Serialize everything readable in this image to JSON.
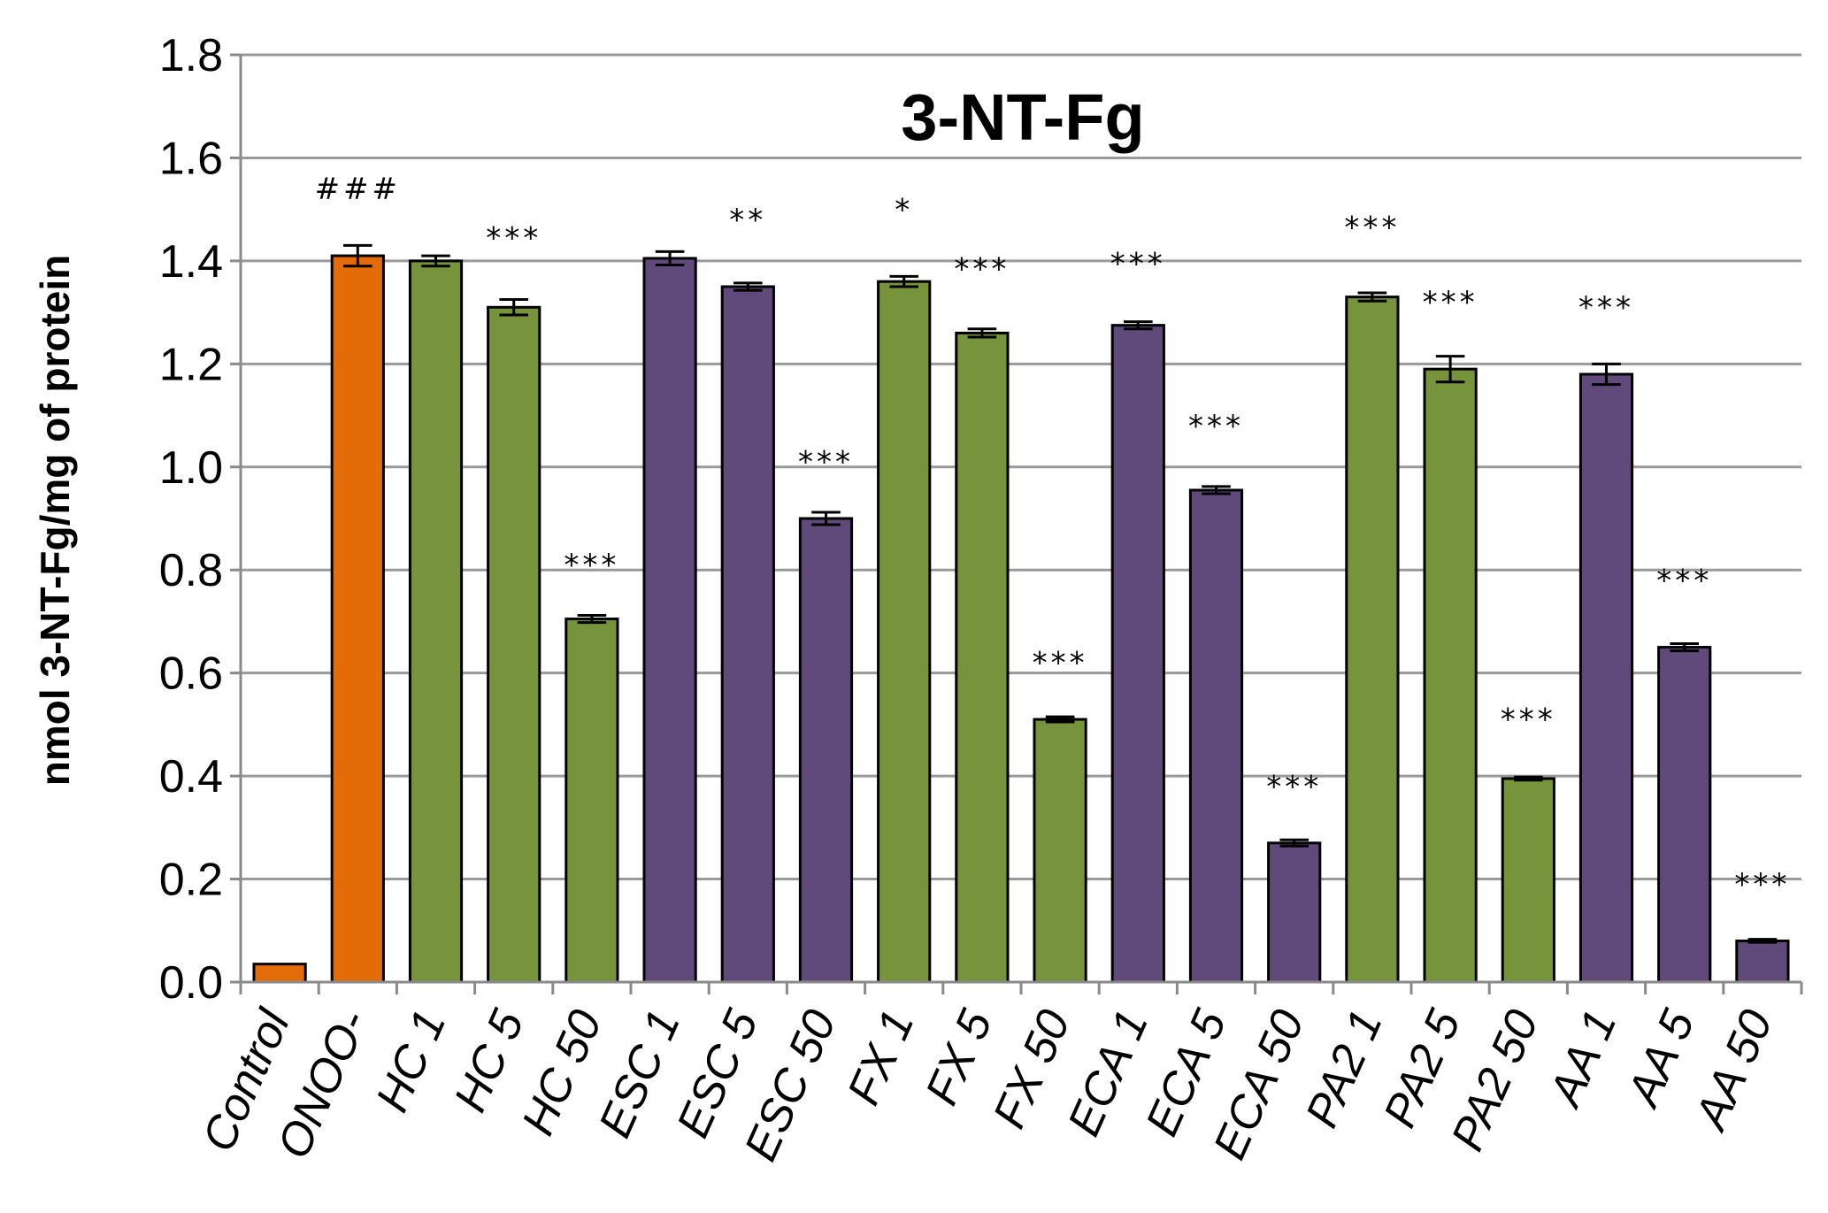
{
  "chart_data": {
    "type": "bar",
    "title": "3-NT-Fg",
    "ylabel": "nmol 3-NT-Fg/mg of protein",
    "xlabel": "",
    "ylim": [
      0,
      1.8
    ],
    "yticks": [
      "0.0",
      "0.2",
      "0.4",
      "0.6",
      "0.8",
      "1.0",
      "1.2",
      "1.4",
      "1.6",
      "1.8"
    ],
    "grid": true,
    "legend": "none",
    "colors": {
      "orange": "#E36C09",
      "green": "#77933C",
      "purple": "#604A7B"
    },
    "categories": [
      "Control",
      "ONOO-",
      "HC 1",
      "HC 5",
      "HC 50",
      "ESC 1",
      "ESC 5",
      "ESC 50",
      "FX 1",
      "FX 5",
      "FX 50",
      "ECA 1",
      "ECA 5",
      "ECA 50",
      "PA2 1",
      "PA2 5",
      "PA2 50",
      "AA 1",
      "AA 5",
      "AA 50"
    ],
    "values": [
      0.035,
      1.41,
      1.4,
      1.31,
      0.705,
      1.405,
      1.35,
      0.9,
      1.36,
      1.26,
      0.51,
      1.275,
      0.955,
      0.27,
      1.33,
      1.19,
      0.395,
      1.18,
      0.65,
      0.08
    ],
    "errors": [
      0.0,
      0.02,
      0.01,
      0.015,
      0.007,
      0.013,
      0.007,
      0.012,
      0.01,
      0.008,
      0.005,
      0.007,
      0.007,
      0.006,
      0.008,
      0.025,
      0.003,
      0.02,
      0.007,
      0.003
    ],
    "bar_colors": [
      "orange",
      "orange",
      "green",
      "green",
      "green",
      "purple",
      "purple",
      "purple",
      "green",
      "green",
      "green",
      "purple",
      "purple",
      "purple",
      "green",
      "green",
      "green",
      "purple",
      "purple",
      "purple"
    ],
    "annotations": [
      "",
      "###",
      "",
      "***",
      "***",
      "",
      "**",
      "***",
      "*",
      "***",
      "***",
      "***",
      "***",
      "***",
      "***",
      "***",
      "***",
      "***",
      "***",
      "***"
    ],
    "annotation_y": [
      null,
      1.52,
      null,
      1.425,
      0.79,
      null,
      1.46,
      0.99,
      1.48,
      1.365,
      0.6,
      1.375,
      1.06,
      0.36,
      1.445,
      1.3,
      0.49,
      1.29,
      0.76,
      0.17
    ]
  }
}
